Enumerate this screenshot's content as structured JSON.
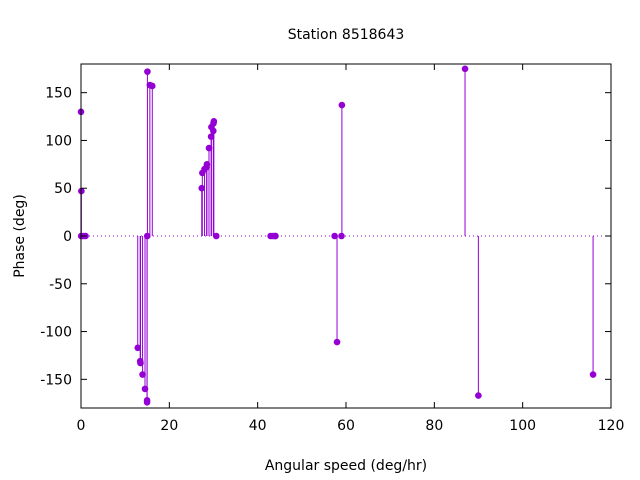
{
  "chart_data": {
    "type": "scatter",
    "title": "Station 8518643",
    "xlabel": "Angular speed (deg/hr)",
    "ylabel": "Phase (deg)",
    "xlim": [
      0,
      120
    ],
    "ylim": [
      -180,
      180
    ],
    "xticks": [
      0,
      20,
      40,
      60,
      80,
      100,
      120
    ],
    "yticks": [
      -150,
      -100,
      -50,
      0,
      50,
      100,
      150
    ],
    "style": "impulses-with-points",
    "zero_line": "dotted",
    "color": "#9400d3",
    "series": [
      {
        "x": [
          0.0,
          0.04,
          0.08,
          0.54,
          1.02,
          12.85,
          13.4,
          13.47,
          13.94,
          14.49,
          14.96,
          14.96,
          15.0,
          15.04,
          15.59,
          16.14,
          27.34,
          27.47,
          27.97,
          28.44,
          28.51,
          28.98,
          29.46,
          29.53,
          29.96,
          30.0,
          30.08,
          30.63,
          42.93,
          43.48,
          43.94,
          44.03,
          57.42,
          57.97,
          58.98,
          59.07,
          86.95,
          89.97,
          115.94
        ],
        "y": [
          130.0,
          0.0,
          47.0,
          0.0,
          0.0,
          -117.0,
          -131.0,
          -133.0,
          -145.0,
          -160.0,
          -174.0,
          -172.0,
          0.0,
          172.0,
          158.0,
          157.0,
          50.0,
          66.0,
          70.0,
          72.0,
          75.0,
          92.0,
          104.0,
          114.0,
          110.0,
          118.0,
          120.0,
          0.0,
          0.0,
          0.0,
          0.0,
          0.0,
          0.0,
          -111.0,
          0.0,
          137.0,
          175.0,
          -167.0,
          -145.0
        ]
      }
    ]
  }
}
